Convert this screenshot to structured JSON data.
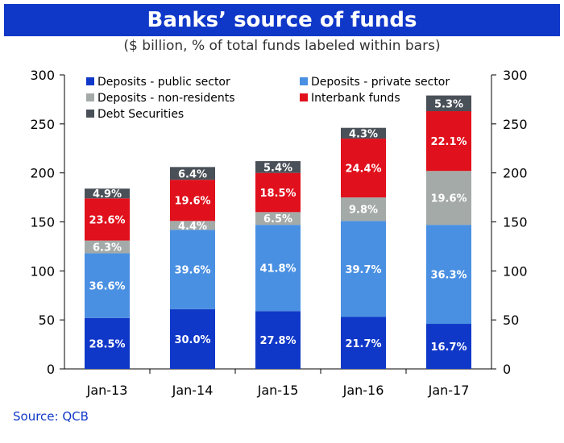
{
  "chart_data": {
    "type": "bar",
    "stacked": true,
    "title": "Banks’ source of funds",
    "subtitle": "($ billion, % of total funds labeled within bars)",
    "source": "Source: QCB",
    "categories": [
      "Jan-13",
      "Jan-14",
      "Jan-15",
      "Jan-16",
      "Jan-17"
    ],
    "ylim": [
      0,
      300
    ],
    "yticks": [
      0,
      50,
      100,
      150,
      200,
      250,
      300
    ],
    "dual_y_axis": true,
    "series": [
      {
        "name": "Deposits - public sector",
        "color": "#1038c8",
        "values": [
          52,
          61,
          59,
          53,
          46
        ],
        "labels": [
          "28.5%",
          "30.0%",
          "27.8%",
          "21.7%",
          "16.7%"
        ]
      },
      {
        "name": "Deposits - private sector",
        "color": "#4a90e2",
        "values": [
          66,
          81,
          88,
          98,
          101
        ],
        "labels": [
          "36.6%",
          "39.6%",
          "41.8%",
          "39.7%",
          "36.3%"
        ]
      },
      {
        "name": "Deposits - non-residents",
        "color": "#a4aaa8",
        "values": [
          13,
          9,
          13,
          24,
          55
        ],
        "labels": [
          "6.3%",
          "4.4%",
          "6.5%",
          "9.8%",
          "19.6%"
        ]
      },
      {
        "name": "Interbank funds",
        "color": "#e0101c",
        "values": [
          43,
          42,
          40,
          60,
          61
        ],
        "labels": [
          "23.6%",
          "19.6%",
          "18.5%",
          "24.4%",
          "22.1%"
        ]
      },
      {
        "name": "Debt Securities",
        "color": "#4a5058",
        "values": [
          10,
          13,
          12,
          11,
          16
        ],
        "labels": [
          "4.9%",
          "6.4%",
          "5.4%",
          "4.3%",
          "5.3%"
        ]
      }
    ],
    "legend_position": "top-left"
  }
}
